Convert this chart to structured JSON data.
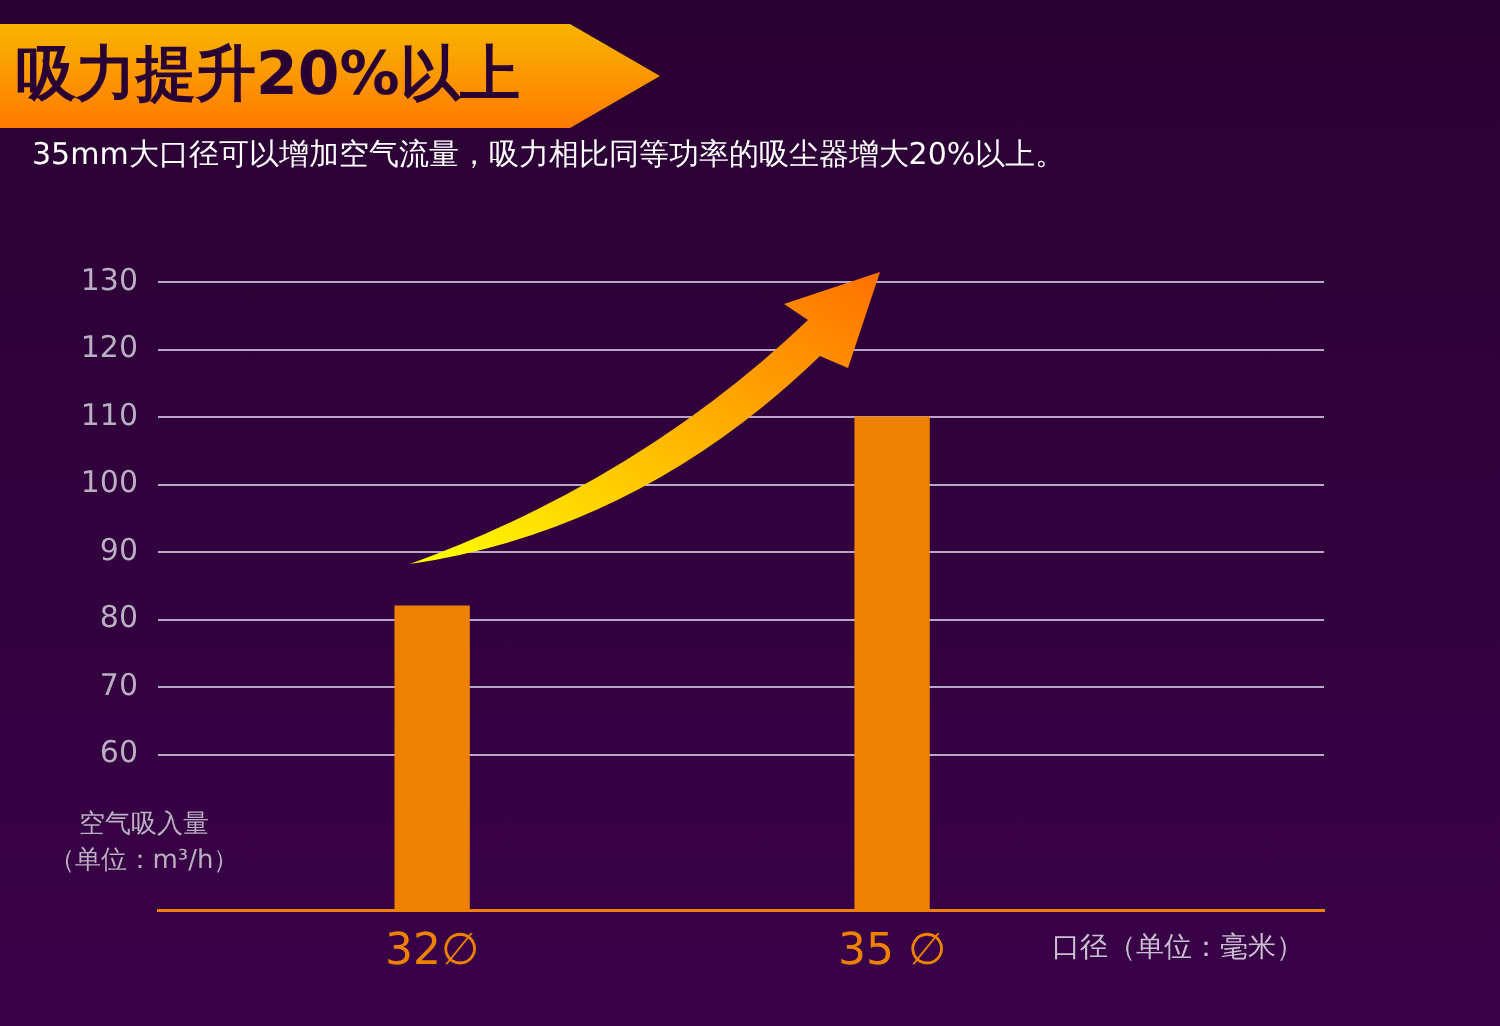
{
  "chart_data": {
    "type": "bar",
    "title": "吸力提升20%以上",
    "subtitle": "35mm大口径可以增加空气流量，吸力相比同等功率的吸尘器增大20%以上。",
    "xlabel": "口径（单位：毫米）",
    "ylabel": "空气吸入量（单位：m³/h）",
    "categories": [
      "32∅",
      "35 ∅"
    ],
    "values": [
      82,
      110
    ],
    "color": "#ee8100",
    "ylim": [
      37,
      130
    ],
    "yticks": [
      60,
      70,
      80,
      90,
      100,
      110,
      120,
      130
    ],
    "grid": "y"
  }
}
